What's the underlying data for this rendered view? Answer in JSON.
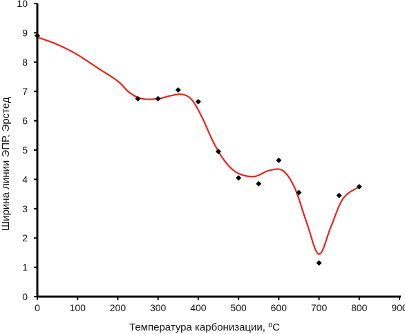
{
  "chart_data": {
    "type": "scatter",
    "xlabel": "Температура карбонизации, ⁰C",
    "ylabel": "Ширина линии ЭПР, Эрстед",
    "xlim": [
      0,
      900
    ],
    "ylim": [
      0,
      10
    ],
    "x_ticks": [
      "0",
      "100",
      "200",
      "300",
      "400",
      "500",
      "600",
      "700",
      "800",
      "900"
    ],
    "y_ticks": [
      "0",
      "1",
      "2",
      "3",
      "4",
      "5",
      "6",
      "7",
      "8",
      "9",
      "10"
    ],
    "grid": false,
    "legend": "none",
    "series": [
      {
        "kind": "points",
        "color": "#000000",
        "marker": "diamond",
        "points": [
          {
            "x": 0,
            "y": 8.9
          },
          {
            "x": 250,
            "y": 6.75
          },
          {
            "x": 300,
            "y": 6.75
          },
          {
            "x": 350,
            "y": 7.05
          },
          {
            "x": 400,
            "y": 6.65
          },
          {
            "x": 450,
            "y": 4.95
          },
          {
            "x": 500,
            "y": 4.05
          },
          {
            "x": 550,
            "y": 3.85
          },
          {
            "x": 600,
            "y": 4.65
          },
          {
            "x": 650,
            "y": 3.55
          },
          {
            "x": 700,
            "y": 1.15
          },
          {
            "x": 750,
            "y": 3.45
          },
          {
            "x": 800,
            "y": 3.75
          }
        ]
      },
      {
        "kind": "fit-curve",
        "color": "#e8211c",
        "points": [
          {
            "x": 0,
            "y": 8.85
          },
          {
            "x": 50,
            "y": 8.6
          },
          {
            "x": 100,
            "y": 8.25
          },
          {
            "x": 150,
            "y": 7.8
          },
          {
            "x": 200,
            "y": 7.35
          },
          {
            "x": 230,
            "y": 6.95
          },
          {
            "x": 260,
            "y": 6.75
          },
          {
            "x": 300,
            "y": 6.75
          },
          {
            "x": 330,
            "y": 6.85
          },
          {
            "x": 360,
            "y": 6.9
          },
          {
            "x": 385,
            "y": 6.7
          },
          {
            "x": 410,
            "y": 6.1
          },
          {
            "x": 440,
            "y": 5.2
          },
          {
            "x": 470,
            "y": 4.55
          },
          {
            "x": 500,
            "y": 4.2
          },
          {
            "x": 540,
            "y": 4.1
          },
          {
            "x": 575,
            "y": 4.3
          },
          {
            "x": 610,
            "y": 4.3
          },
          {
            "x": 640,
            "y": 3.7
          },
          {
            "x": 670,
            "y": 2.5
          },
          {
            "x": 700,
            "y": 1.45
          },
          {
            "x": 730,
            "y": 2.4
          },
          {
            "x": 760,
            "y": 3.35
          },
          {
            "x": 800,
            "y": 3.75
          }
        ]
      }
    ]
  }
}
